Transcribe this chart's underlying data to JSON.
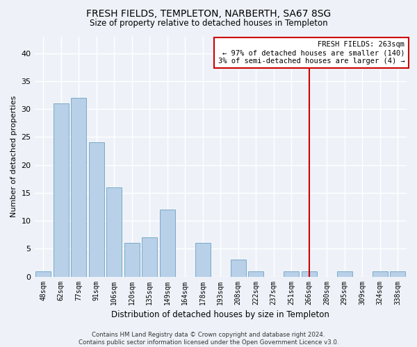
{
  "title": "FRESH FIELDS, TEMPLETON, NARBERTH, SA67 8SG",
  "subtitle": "Size of property relative to detached houses in Templeton",
  "xlabel": "Distribution of detached houses by size in Templeton",
  "ylabel": "Number of detached properties",
  "categories": [
    "48sqm",
    "62sqm",
    "77sqm",
    "91sqm",
    "106sqm",
    "120sqm",
    "135sqm",
    "149sqm",
    "164sqm",
    "178sqm",
    "193sqm",
    "208sqm",
    "222sqm",
    "237sqm",
    "251sqm",
    "266sqm",
    "280sqm",
    "295sqm",
    "309sqm",
    "324sqm",
    "338sqm"
  ],
  "values": [
    1,
    31,
    32,
    24,
    16,
    6,
    7,
    12,
    0,
    6,
    0,
    3,
    1,
    0,
    1,
    1,
    0,
    1,
    0,
    1,
    1
  ],
  "bar_color": "#b8d0e8",
  "bar_edge_color": "#7aaac8",
  "background_color": "#eef2f8",
  "grid_color": "#ffffff",
  "vline_color": "#cc0000",
  "vline_index": 15,
  "annotation_text": "FRESH FIELDS: 263sqm\n← 97% of detached houses are smaller (140)\n3% of semi-detached houses are larger (4) →",
  "annotation_box_facecolor": "#ffffff",
  "annotation_box_edgecolor": "#cc0000",
  "footer_text": "Contains HM Land Registry data © Crown copyright and database right 2024.\nContains public sector information licensed under the Open Government Licence v3.0.",
  "ylim": [
    0,
    43
  ],
  "yticks": [
    0,
    5,
    10,
    15,
    20,
    25,
    30,
    35,
    40
  ]
}
